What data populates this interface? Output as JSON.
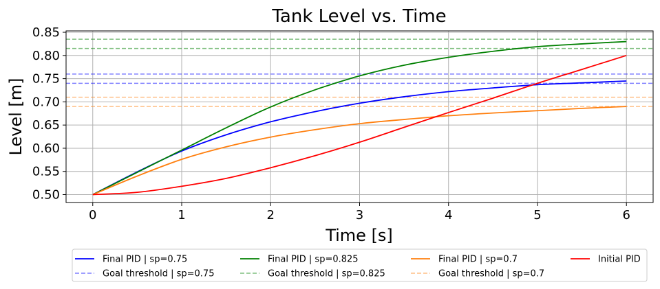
{
  "chart_data": {
    "type": "line",
    "title": "Tank Level vs. Time",
    "xlabel": "Time [s]",
    "ylabel": "Level [m]",
    "xlim": [
      -0.3,
      6.3
    ],
    "ylim": [
      0.483,
      0.853
    ],
    "xticks": [
      0,
      1,
      2,
      3,
      4,
      5,
      6
    ],
    "xtick_labels": [
      "0",
      "1",
      "2",
      "3",
      "4",
      "5",
      "6"
    ],
    "yticks": [
      0.5,
      0.55,
      0.6,
      0.65,
      0.7,
      0.75,
      0.8,
      0.85
    ],
    "ytick_labels": [
      "0.50",
      "0.55",
      "0.60",
      "0.65",
      "0.70",
      "0.75",
      "0.80",
      "0.85"
    ],
    "grid": true,
    "legend_position": "bottom-outside",
    "series": [
      {
        "name": "Final PID | sp=0.75",
        "color": "#0000ff",
        "style": "solid",
        "x": [
          0,
          0.5,
          1,
          1.5,
          2,
          2.5,
          3,
          3.5,
          4,
          4.5,
          5,
          5.5,
          6
        ],
        "y": [
          0.5,
          0.549,
          0.594,
          0.629,
          0.657,
          0.679,
          0.697,
          0.711,
          0.722,
          0.73,
          0.737,
          0.741,
          0.745
        ]
      },
      {
        "name": "Goal threshold | sp=0.75",
        "color": "#0000ff",
        "style": "dashed",
        "hlines": [
          0.74,
          0.76
        ]
      },
      {
        "name": "Final PID | sp=0.825",
        "color": "#008000",
        "style": "solid",
        "x": [
          0,
          0.5,
          1,
          1.5,
          2,
          2.5,
          3,
          3.5,
          4,
          4.5,
          5,
          5.5,
          6
        ],
        "y": [
          0.5,
          0.548,
          0.596,
          0.644,
          0.689,
          0.726,
          0.756,
          0.779,
          0.796,
          0.809,
          0.819,
          0.825,
          0.83
        ]
      },
      {
        "name": "Goal threshold | sp=0.825",
        "color": "#008000",
        "style": "dashed",
        "hlines": [
          0.815,
          0.835
        ]
      },
      {
        "name": "Final PID | sp=0.7",
        "color": "#ff7f0e",
        "style": "solid",
        "x": [
          0,
          0.5,
          1,
          1.5,
          2,
          2.5,
          3,
          3.5,
          4,
          4.5,
          5,
          5.5,
          6
        ],
        "y": [
          0.5,
          0.54,
          0.576,
          0.603,
          0.624,
          0.64,
          0.653,
          0.662,
          0.67,
          0.676,
          0.681,
          0.686,
          0.69
        ]
      },
      {
        "name": "Goal threshold | sp=0.7",
        "color": "#ff7f0e",
        "style": "dashed",
        "hlines": [
          0.69,
          0.71
        ]
      },
      {
        "name": "Initial PID",
        "color": "#ff0000",
        "style": "solid",
        "x": [
          0,
          0.5,
          1,
          1.5,
          2,
          2.5,
          3,
          3.5,
          4,
          4.5,
          5,
          5.5,
          6
        ],
        "y": [
          0.5,
          0.505,
          0.518,
          0.535,
          0.558,
          0.584,
          0.613,
          0.645,
          0.677,
          0.708,
          0.74,
          0.77,
          0.8
        ]
      }
    ],
    "legend_order": [
      "Final PID | sp=0.75",
      "Goal threshold | sp=0.75",
      "Final PID | sp=0.825",
      "Goal threshold | sp=0.825",
      "Final PID | sp=0.7",
      "Goal threshold | sp=0.7",
      "Initial PID"
    ]
  }
}
